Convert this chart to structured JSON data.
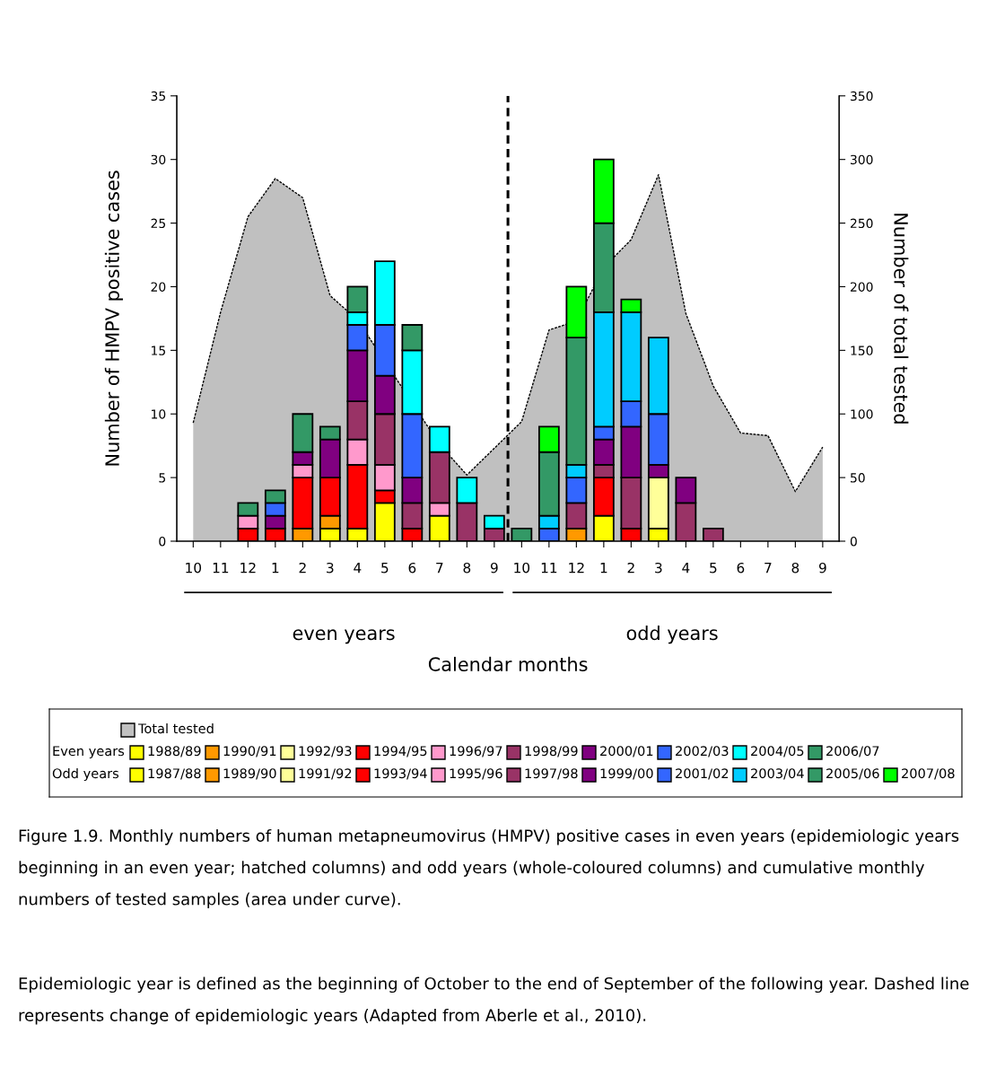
{
  "chart_data": {
    "type": "bar",
    "stacked": true,
    "categories": [
      "10",
      "11",
      "12",
      "1",
      "2",
      "3",
      "4",
      "5",
      "6",
      "7",
      "8",
      "9",
      "10",
      "11",
      "12",
      "1",
      "2",
      "3",
      "4",
      "5",
      "6",
      "7",
      "8",
      "9"
    ],
    "xlabel": "Calendar months",
    "ylabel": "Number of HMPV positive cases",
    "y2label": "Number of total tested",
    "ylim": [
      0,
      35
    ],
    "yticks": [
      0,
      5,
      10,
      15,
      20,
      25,
      30,
      35
    ],
    "y2lim": [
      0,
      350
    ],
    "y2ticks": [
      0,
      50,
      100,
      150,
      200,
      250,
      300,
      350
    ],
    "grid": false,
    "legend": "bottom",
    "series": [
      {
        "name": "Total tested",
        "type": "area",
        "axis": "y2",
        "color": "#c0c0c0",
        "values": [
          93,
          180,
          255,
          285,
          270,
          193,
          174,
          null,
          null,
          76,
          52,
          73,
          94,
          166,
          173,
          215,
          237,
          288,
          179,
          122,
          85,
          83,
          39,
          74
        ]
      },
      {
        "name": "1988/89",
        "color": "#ffff00",
        "values": [
          null,
          null,
          null,
          null,
          null,
          1,
          1,
          3,
          null,
          2,
          null,
          null,
          null,
          null,
          null,
          null,
          null,
          null,
          null,
          null,
          null,
          null,
          null,
          null
        ]
      },
      {
        "name": "1990/91",
        "color": "#ff9900",
        "values": [
          null,
          null,
          null,
          null,
          1,
          1,
          null,
          null,
          null,
          null,
          null,
          null,
          null,
          null,
          null,
          null,
          null,
          null,
          null,
          null,
          null,
          null,
          null,
          null
        ]
      },
      {
        "name": "1992/93",
        "color": "#ffff99",
        "values": [
          null,
          null,
          null,
          null,
          null,
          null,
          null,
          null,
          null,
          null,
          null,
          null,
          null,
          null,
          null,
          null,
          null,
          null,
          null,
          null,
          null,
          null,
          null,
          null
        ]
      },
      {
        "name": "1994/95",
        "color": "#ff0000",
        "values": [
          null,
          null,
          1,
          1,
          4,
          3,
          5,
          1,
          1,
          null,
          null,
          null,
          null,
          null,
          null,
          null,
          null,
          null,
          null,
          null,
          null,
          null,
          null,
          null
        ]
      },
      {
        "name": "1996/97",
        "color": "#ff99cc",
        "values": [
          null,
          null,
          1,
          null,
          1,
          null,
          2,
          2,
          null,
          1,
          null,
          null,
          null,
          null,
          null,
          null,
          null,
          null,
          null,
          null,
          null,
          null,
          null,
          null
        ]
      },
      {
        "name": "1998/99",
        "color": "#993366",
        "values": [
          null,
          null,
          null,
          null,
          null,
          null,
          3,
          4,
          2,
          4,
          3,
          1,
          null,
          null,
          null,
          null,
          null,
          null,
          null,
          null,
          null,
          null,
          null,
          null
        ]
      },
      {
        "name": "2000/01",
        "color": "#800080",
        "values": [
          null,
          null,
          null,
          1,
          1,
          3,
          4,
          3,
          2,
          null,
          null,
          null,
          null,
          null,
          null,
          null,
          null,
          null,
          null,
          null,
          null,
          null,
          null,
          null
        ]
      },
      {
        "name": "2002/03",
        "color": "#3366ff",
        "values": [
          null,
          null,
          null,
          1,
          null,
          null,
          2,
          4,
          5,
          null,
          null,
          null,
          null,
          null,
          null,
          null,
          null,
          null,
          null,
          null,
          null,
          null,
          null,
          null
        ]
      },
      {
        "name": "2004/05",
        "color": "#00ffff",
        "values": [
          null,
          null,
          null,
          null,
          null,
          null,
          1,
          5,
          5,
          2,
          2,
          1,
          null,
          null,
          null,
          null,
          null,
          null,
          null,
          null,
          null,
          null,
          null,
          null
        ]
      },
      {
        "name": "2006/07",
        "color": "#339966",
        "values": [
          null,
          null,
          1,
          1,
          3,
          1,
          2,
          null,
          2,
          null,
          null,
          null,
          null,
          null,
          null,
          null,
          null,
          null,
          null,
          null,
          null,
          null,
          null,
          null
        ]
      },
      {
        "name": "1987/88",
        "color": "#ffff00",
        "values": [
          null,
          null,
          null,
          null,
          null,
          null,
          null,
          null,
          null,
          null,
          null,
          null,
          null,
          null,
          null,
          2,
          null,
          1,
          null,
          null,
          null,
          null,
          null,
          null
        ]
      },
      {
        "name": "1989/90",
        "color": "#ff9900",
        "values": [
          null,
          null,
          null,
          null,
          null,
          null,
          null,
          null,
          null,
          null,
          null,
          null,
          null,
          null,
          1,
          null,
          null,
          null,
          null,
          null,
          null,
          null,
          null,
          null
        ]
      },
      {
        "name": "1991/92",
        "color": "#ffff99",
        "values": [
          null,
          null,
          null,
          null,
          null,
          null,
          null,
          null,
          null,
          null,
          null,
          null,
          null,
          null,
          null,
          null,
          null,
          4,
          null,
          null,
          null,
          null,
          null,
          null
        ]
      },
      {
        "name": "1993/94",
        "color": "#ff0000",
        "values": [
          null,
          null,
          null,
          null,
          null,
          null,
          null,
          null,
          null,
          null,
          null,
          null,
          null,
          null,
          null,
          3,
          1,
          null,
          null,
          null,
          null,
          null,
          null,
          null
        ]
      },
      {
        "name": "1995/96",
        "color": "#ff99cc",
        "values": [
          null,
          null,
          null,
          null,
          null,
          null,
          null,
          null,
          null,
          null,
          null,
          null,
          null,
          null,
          null,
          null,
          null,
          null,
          null,
          null,
          null,
          null,
          null,
          null
        ]
      },
      {
        "name": "1997/98",
        "color": "#993366",
        "values": [
          null,
          null,
          null,
          null,
          null,
          null,
          null,
          null,
          null,
          null,
          null,
          null,
          null,
          null,
          2,
          1,
          4,
          null,
          3,
          1,
          null,
          null,
          null,
          null
        ]
      },
      {
        "name": "1999/00",
        "color": "#800080",
        "values": [
          null,
          null,
          null,
          null,
          null,
          null,
          null,
          null,
          null,
          null,
          null,
          null,
          null,
          null,
          null,
          2,
          4,
          1,
          2,
          null,
          null,
          null,
          null,
          null
        ]
      },
      {
        "name": "2001/02",
        "color": "#3366ff",
        "values": [
          null,
          null,
          null,
          null,
          null,
          null,
          null,
          null,
          null,
          null,
          null,
          null,
          null,
          1,
          2,
          1,
          2,
          4,
          null,
          null,
          null,
          null,
          null,
          null
        ]
      },
      {
        "name": "2003/04",
        "color": "#00ccff",
        "values": [
          null,
          null,
          null,
          null,
          null,
          null,
          null,
          null,
          null,
          null,
          null,
          null,
          null,
          1,
          1,
          9,
          7,
          6,
          null,
          null,
          null,
          null,
          null,
          null
        ]
      },
      {
        "name": "2005/06",
        "color": "#339966",
        "values": [
          null,
          null,
          null,
          null,
          null,
          null,
          null,
          null,
          null,
          null,
          null,
          null,
          1,
          5,
          10,
          7,
          null,
          null,
          null,
          null,
          null,
          null,
          null,
          null
        ]
      },
      {
        "name": "2007/08",
        "color": "#00ff00",
        "values": [
          null,
          null,
          null,
          null,
          null,
          null,
          null,
          null,
          null,
          null,
          null,
          null,
          null,
          2,
          4,
          5,
          1,
          null,
          null,
          null,
          null,
          null,
          null,
          null
        ]
      }
    ],
    "annotations": [
      "even years",
      "odd years",
      "Even years",
      "Odd years",
      "Figure 1.9. Monthly numbers of human metapneumovirus (HMPV) positive cases in even years (epidemiologic years beginning in an even year; hatched columns) and odd years (whole-coloured columns) and cumulative monthly numbers of tested samples (area under curve).",
      "Epidemiologic year is defined as the beginning of October to the end of September of the following year. Dashed line represents change of epidemiologic years (Adapted from Aberle et al., 2010)."
    ]
  }
}
